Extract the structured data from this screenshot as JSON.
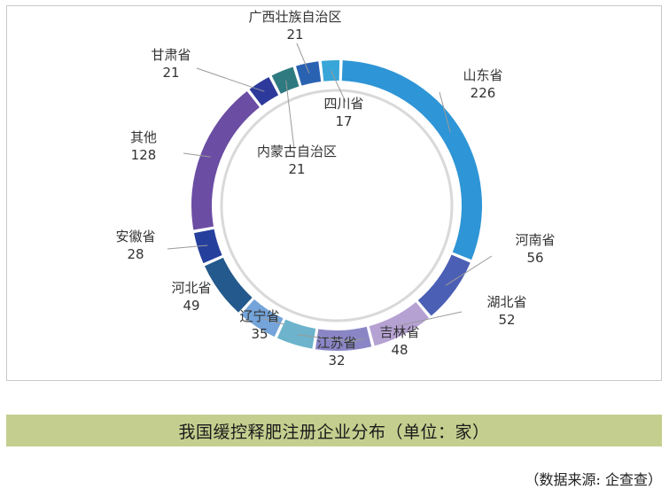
{
  "chart_data": {
    "type": "pie",
    "style": "donut",
    "title": "",
    "slices": [
      {
        "label": "山东省",
        "value": 226,
        "color": "#2e95d6"
      },
      {
        "label": "河南省",
        "value": 56,
        "color": "#4b5fb5"
      },
      {
        "label": "湖北省",
        "value": 52,
        "color": "#b6a1d3"
      },
      {
        "label": "吉林省",
        "value": 48,
        "color": "#8a86c6"
      },
      {
        "label": "江苏省",
        "value": 32,
        "color": "#6cb3cb"
      },
      {
        "label": "辽宁省",
        "value": 35,
        "color": "#74a4d9"
      },
      {
        "label": "河北省",
        "value": 49,
        "color": "#23598c"
      },
      {
        "label": "安徽省",
        "value": 28,
        "color": "#253f9d"
      },
      {
        "label": "其他",
        "value": 128,
        "color": "#6b4da3"
      },
      {
        "label": "甘肃省",
        "value": 21,
        "color": "#2d399b"
      },
      {
        "label": "内蒙古自治区",
        "value": 21,
        "color": "#2e7a80"
      },
      {
        "label": "广西壮族自治区",
        "value": 21,
        "color": "#2a62b2"
      },
      {
        "label": "四川省",
        "value": 17,
        "color": "#38a6d8"
      }
    ]
  },
  "caption": "我国缓控释肥注册企业分布（单位：家）",
  "source": "（数据来源: 企查查）"
}
